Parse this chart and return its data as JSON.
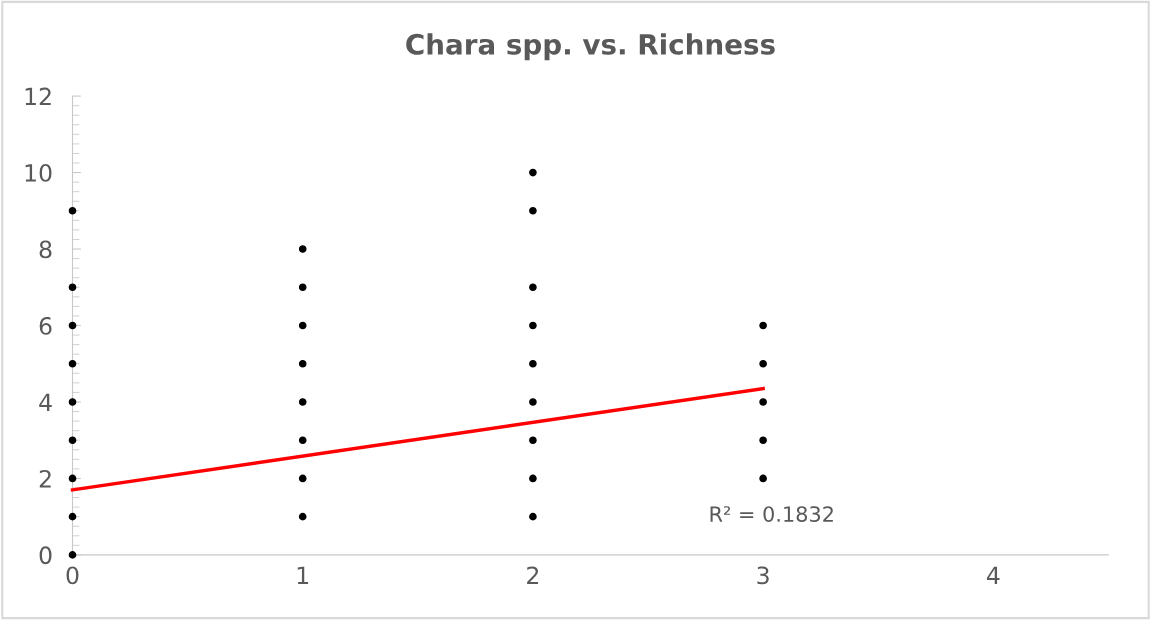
{
  "chart_data": {
    "type": "scatter",
    "title": "Chara spp. vs. Richness",
    "series": [
      {
        "color": "#000000",
        "marker": "circle",
        "x": [
          0,
          0,
          0,
          0,
          0,
          0,
          0,
          0,
          0,
          1,
          1,
          1,
          1,
          1,
          1,
          1,
          1,
          2,
          2,
          2,
          2,
          2,
          2,
          2,
          2,
          2,
          3,
          3,
          3,
          3,
          3
        ],
        "values": [
          0,
          1,
          2,
          3,
          4,
          5,
          6,
          7,
          9,
          1,
          2,
          3,
          4,
          5,
          6,
          7,
          8,
          1,
          2,
          3,
          4,
          5,
          6,
          7,
          9,
          10,
          2,
          3,
          4,
          5,
          6
        ]
      },
      {
        "type": "line",
        "color": "#ff0000",
        "x": [
          0,
          3
        ],
        "values": [
          1.7,
          4.35
        ]
      }
    ],
    "annotations": [
      "R² = 0.1832"
    ],
    "xlim": [
      0,
      4.5
    ],
    "xticks": [
      0,
      1,
      2,
      3,
      4
    ],
    "ylim": [
      0,
      12
    ],
    "yticks": [
      0,
      2,
      4,
      6,
      8,
      10,
      12
    ],
    "grid": false,
    "legend": false
  }
}
